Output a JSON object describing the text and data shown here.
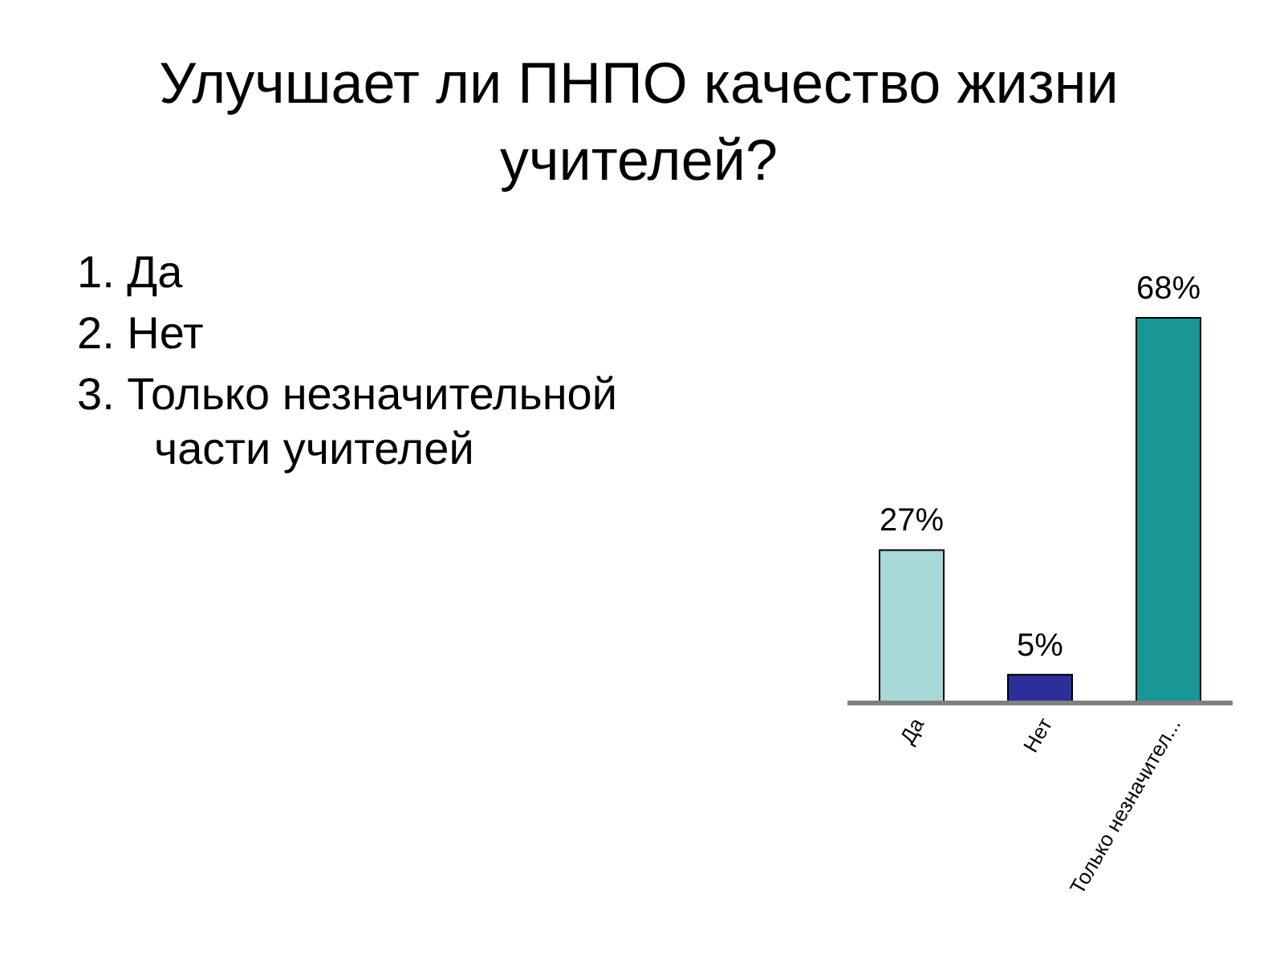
{
  "chart_data": {
    "type": "bar",
    "title": "Улучшает ли ПНПО качество жизни учителей?",
    "categories": [
      "Да",
      "Нет",
      "Только незначител..."
    ],
    "values": [
      27,
      5,
      68
    ],
    "colors": [
      "#a8d8d8",
      "#2e2e9a",
      "#1a9696"
    ],
    "value_labels": [
      "27%",
      "5%",
      "68%"
    ],
    "annotations": [
      "1. Да",
      "2. Нет",
      "3. Только незначительной части учителей"
    ]
  }
}
